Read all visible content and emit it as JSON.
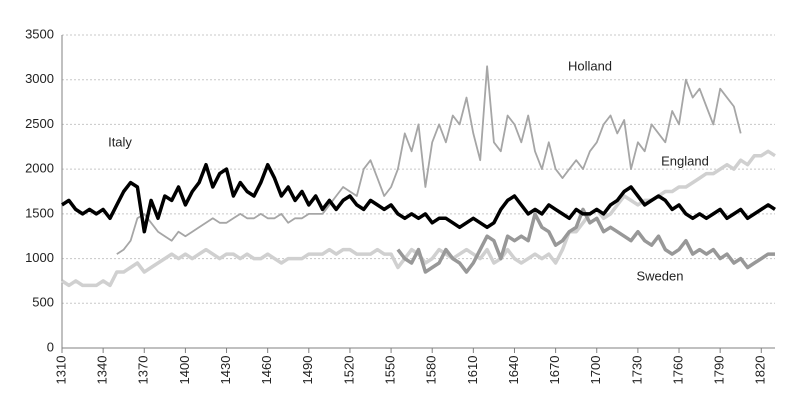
{
  "chart_data": {
    "type": "line",
    "x": [
      1310,
      1315,
      1320,
      1325,
      1330,
      1335,
      1340,
      1345,
      1350,
      1355,
      1360,
      1365,
      1370,
      1375,
      1380,
      1385,
      1390,
      1395,
      1400,
      1405,
      1410,
      1415,
      1420,
      1425,
      1430,
      1435,
      1440,
      1445,
      1450,
      1455,
      1460,
      1465,
      1470,
      1475,
      1480,
      1485,
      1490,
      1495,
      1500,
      1505,
      1510,
      1515,
      1520,
      1525,
      1530,
      1535,
      1540,
      1545,
      1550,
      1555,
      1560,
      1565,
      1570,
      1575,
      1580,
      1585,
      1590,
      1595,
      1600,
      1605,
      1610,
      1615,
      1620,
      1625,
      1630,
      1635,
      1640,
      1645,
      1650,
      1655,
      1660,
      1665,
      1670,
      1675,
      1680,
      1685,
      1690,
      1695,
      1700,
      1705,
      1710,
      1715,
      1720,
      1725,
      1730,
      1735,
      1740,
      1745,
      1750,
      1755,
      1760,
      1765,
      1770,
      1775,
      1780,
      1785,
      1790,
      1795,
      1800,
      1805,
      1810,
      1815,
      1820,
      1825,
      1830
    ],
    "series": [
      {
        "name": "Italy",
        "color": "#000000",
        "values": [
          1600,
          1650,
          1550,
          1500,
          1550,
          1500,
          1550,
          1450,
          1600,
          1750,
          1850,
          1800,
          1300,
          1650,
          1450,
          1700,
          1650,
          1800,
          1600,
          1750,
          1850,
          2050,
          1800,
          1950,
          2000,
          1700,
          1850,
          1750,
          1700,
          1850,
          2050,
          1900,
          1700,
          1800,
          1650,
          1750,
          1600,
          1700,
          1550,
          1650,
          1550,
          1650,
          1700,
          1600,
          1550,
          1650,
          1600,
          1550,
          1600,
          1500,
          1450,
          1500,
          1450,
          1500,
          1400,
          1450,
          1450,
          1400,
          1350,
          1400,
          1450,
          1400,
          1350,
          1400,
          1550,
          1650,
          1700,
          1600,
          1500,
          1550,
          1500,
          1600,
          1550,
          1500,
          1450,
          1550,
          1500,
          1500,
          1550,
          1500,
          1600,
          1650,
          1750,
          1800,
          1700,
          1600,
          1650,
          1700,
          1650,
          1550,
          1600,
          1500,
          1450,
          1500,
          1450,
          1500,
          1550,
          1450,
          1500,
          1550,
          1450,
          1500,
          1550,
          1600,
          1550
        ]
      },
      {
        "name": "Holland",
        "color": "#a6a6a6",
        "values": [
          null,
          null,
          null,
          null,
          null,
          null,
          null,
          null,
          1050,
          1100,
          1200,
          1450,
          1500,
          1400,
          1300,
          1250,
          1200,
          1300,
          1250,
          1300,
          1350,
          1400,
          1450,
          1400,
          1400,
          1450,
          1500,
          1450,
          1450,
          1500,
          1450,
          1450,
          1500,
          1400,
          1450,
          1450,
          1500,
          1500,
          1500,
          1600,
          1700,
          1800,
          1750,
          1700,
          2000,
          2100,
          1900,
          1700,
          1800,
          2000,
          2400,
          2200,
          2500,
          1800,
          2300,
          2500,
          2300,
          2600,
          2500,
          2800,
          2400,
          2100,
          3150,
          2300,
          2200,
          2600,
          2500,
          2300,
          2600,
          2200,
          2000,
          2300,
          2000,
          1900,
          2000,
          2100,
          2000,
          2200,
          2300,
          2500,
          2600,
          2400,
          2550,
          2000,
          2300,
          2200,
          2500,
          2400,
          2300,
          2650,
          2500,
          3000,
          2800,
          2900,
          2700,
          2500,
          2900,
          2800,
          2700,
          2400,
          null,
          null,
          null,
          null,
          null
        ]
      },
      {
        "name": "England",
        "color": "#d0d0d0",
        "values": [
          750,
          700,
          750,
          700,
          700,
          700,
          750,
          700,
          850,
          850,
          900,
          950,
          850,
          900,
          950,
          1000,
          1050,
          1000,
          1050,
          1000,
          1050,
          1100,
          1050,
          1000,
          1050,
          1050,
          1000,
          1050,
          1000,
          1000,
          1050,
          1000,
          950,
          1000,
          1000,
          1000,
          1050,
          1050,
          1050,
          1100,
          1050,
          1100,
          1100,
          1050,
          1050,
          1050,
          1100,
          1050,
          1050,
          900,
          1000,
          1100,
          1050,
          950,
          1000,
          1100,
          1050,
          1000,
          1050,
          1100,
          1050,
          1000,
          1100,
          950,
          1000,
          1100,
          1000,
          950,
          1000,
          1050,
          1000,
          1050,
          950,
          1100,
          1300,
          1300,
          1400,
          1500,
          1550,
          1450,
          1500,
          1600,
          1700,
          1650,
          1600,
          1650,
          1650,
          1700,
          1750,
          1750,
          1800,
          1800,
          1850,
          1900,
          1950,
          1950,
          2000,
          2050,
          2000,
          2100,
          2050,
          2150,
          2150,
          2200,
          2150
        ]
      },
      {
        "name": "Sweden",
        "color": "#989898",
        "values": [
          null,
          null,
          null,
          null,
          null,
          null,
          null,
          null,
          null,
          null,
          null,
          null,
          null,
          null,
          null,
          null,
          null,
          null,
          null,
          null,
          null,
          null,
          null,
          null,
          null,
          null,
          null,
          null,
          null,
          null,
          null,
          null,
          null,
          null,
          null,
          null,
          null,
          null,
          null,
          null,
          null,
          null,
          null,
          null,
          null,
          null,
          null,
          null,
          null,
          1100,
          1000,
          950,
          1100,
          850,
          900,
          950,
          1100,
          1000,
          950,
          850,
          950,
          1100,
          1250,
          1200,
          1000,
          1250,
          1200,
          1250,
          1200,
          1500,
          1350,
          1300,
          1150,
          1200,
          1300,
          1350,
          1550,
          1400,
          1450,
          1300,
          1350,
          1300,
          1250,
          1200,
          1300,
          1200,
          1150,
          1250,
          1100,
          1050,
          1100,
          1200,
          1050,
          1100,
          1050,
          1100,
          1000,
          1050,
          950,
          1000,
          900,
          950,
          1000,
          1050,
          1050
        ]
      }
    ],
    "xlim": [
      1310,
      1830
    ],
    "xticks": [
      1310,
      1340,
      1370,
      1400,
      1430,
      1460,
      1490,
      1520,
      1550,
      1580,
      1610,
      1640,
      1670,
      1700,
      1730,
      1760,
      1790,
      1820
    ],
    "ylim": [
      0,
      3500
    ],
    "yticks": [
      0,
      500,
      1000,
      1500,
      2000,
      2500,
      3000,
      3500
    ],
    "grid": true
  }
}
